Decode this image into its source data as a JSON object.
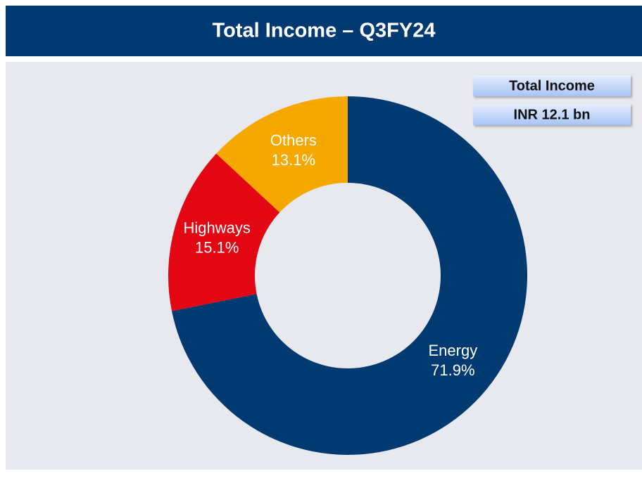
{
  "chart_data": {
    "type": "pie",
    "title": "Total Income – Q3FY24",
    "annotations": [
      "Total Income",
      "INR 12.1 bn"
    ],
    "categories": [
      "Energy",
      "Highways",
      "Others"
    ],
    "values": [
      71.9,
      15.1,
      13.1
    ],
    "value_labels": [
      "71.9%",
      "15.1%",
      "13.1%"
    ],
    "colors": [
      "#003a70",
      "#e30613",
      "#f5a800"
    ]
  }
}
